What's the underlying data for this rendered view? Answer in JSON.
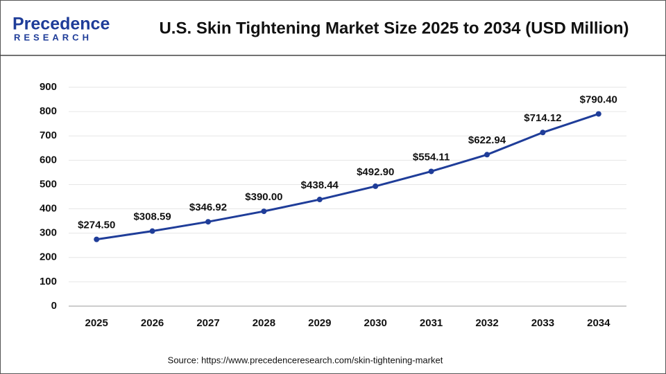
{
  "logo": {
    "name": "Precedence",
    "subtitle": "RESEARCH"
  },
  "chart_data": {
    "type": "line",
    "title": "U.S. Skin Tightening Market Size 2025 to 2034 (USD Million)",
    "categories": [
      "2025",
      "2026",
      "2027",
      "2028",
      "2029",
      "2030",
      "2031",
      "2032",
      "2033",
      "2034"
    ],
    "series": [
      {
        "name": "U.S. Skin Tightening Market Size",
        "color": "#1f3d99",
        "values": [
          274.5,
          308.59,
          346.92,
          390.0,
          438.44,
          492.9,
          554.11,
          622.94,
          714.12,
          790.4
        ],
        "value_labels": [
          "$274.50",
          "$308.59",
          "$346.92",
          "$390.00",
          "$438.44",
          "$492.90",
          "$554.11",
          "$622.94",
          "$714.12",
          "$790.40"
        ]
      }
    ],
    "ylim": [
      0,
      900
    ],
    "yticks": [
      0,
      100,
      200,
      300,
      400,
      500,
      600,
      700,
      800,
      900
    ],
    "grid": true,
    "source": "Source: https://www.precedenceresearch.com/skin-tightening-market"
  }
}
